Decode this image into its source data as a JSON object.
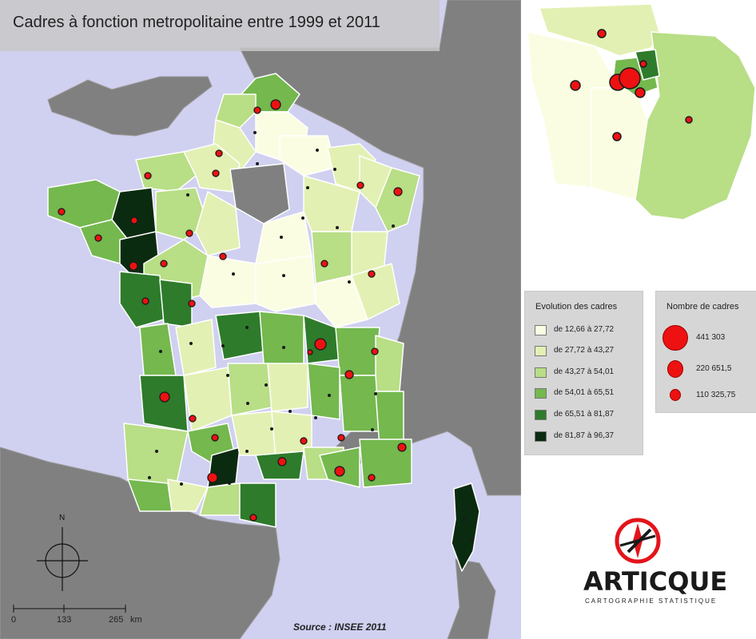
{
  "title": "Cadres à fonction metropolitaine entre 1999 et 2011",
  "source": "Source : INSEE 2011",
  "north_label": "N",
  "scale": {
    "labels": [
      "0",
      "133",
      "265"
    ],
    "unit": "km"
  },
  "legend_evolution": {
    "title": "Evolution des cadres",
    "classes": [
      {
        "label": "de 12,66 à 27,72",
        "color": "#fbfde3"
      },
      {
        "label": "de 27,72 à 43,27",
        "color": "#e3f0b3"
      },
      {
        "label": "de 43,27 à 54,01",
        "color": "#b8de86"
      },
      {
        "label": "de 54,01 à 65,51",
        "color": "#74b84e"
      },
      {
        "label": "de 65,51 à 81,87",
        "color": "#2e7b2b"
      },
      {
        "label": "de 81,87 à 96,37",
        "color": "#0b2b10"
      }
    ]
  },
  "legend_count": {
    "title": "Nombre de cadres",
    "items": [
      {
        "label": "441 303",
        "value": 441303
      },
      {
        "label": "220 651,5",
        "value": 220651.5
      },
      {
        "label": "110 325,75",
        "value": 110325.75
      }
    ]
  },
  "logo": {
    "word": "ARTICQUE",
    "tagline": "CARTOGRAPHIE STATISTIQUE"
  },
  "colors": {
    "sea": "#d0d0f0",
    "land_foreign": "#808080",
    "border": "#ffffff",
    "symbol": "#ee1111",
    "logo_red": "#e3141b"
  }
}
